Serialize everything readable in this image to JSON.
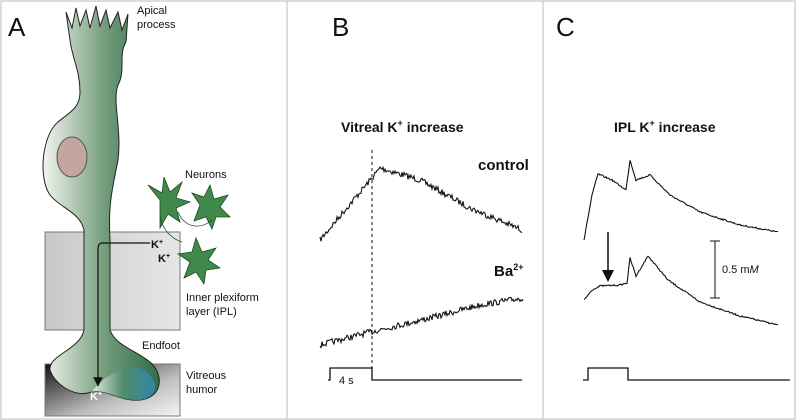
{
  "panel_a": {
    "label": "A",
    "apical_process": [
      "Apical",
      "process"
    ],
    "neurons": "Neurons",
    "ion_in": [
      [
        "K",
        "+"
      ],
      [
        "K",
        "+"
      ]
    ],
    "ipl": [
      "Inner plexiform",
      "layer (IPL)"
    ],
    "endfoot": "Endfoot",
    "vitreous": [
      "Vitreous",
      "humor"
    ],
    "ion_out": [
      "K",
      "+"
    ]
  },
  "panel_b": {
    "label": "B",
    "title": [
      "Vitreal K",
      "+",
      " increase"
    ],
    "control": "control",
    "barium": [
      "Ba",
      "2+"
    ],
    "time_scale": "4 s"
  },
  "panel_c": {
    "label": "C",
    "title": [
      "IPL K",
      "+",
      " increase"
    ],
    "scale_bar": [
      "0.5 m",
      "M"
    ]
  }
}
